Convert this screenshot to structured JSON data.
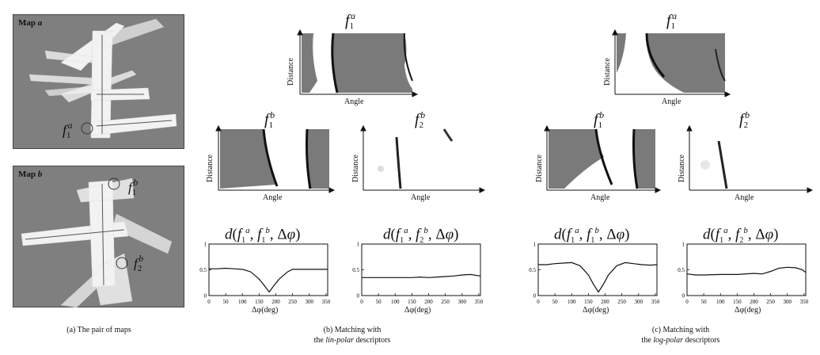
{
  "panel_a": {
    "map_a_label_prefix": "Map ",
    "map_a_label_letter": "a",
    "map_b_label_prefix": "Map ",
    "map_b_label_letter": "b",
    "caption": "(a) The pair of maps",
    "marker_a1": "f1a",
    "marker_b1": "f1b",
    "marker_b2": "f2b"
  },
  "panel_b": {
    "caption_line1": "(b) Matching with",
    "caption_line2_pre": "the ",
    "caption_line2_em": "lin-polar",
    "caption_line2_post": " descriptors",
    "desc_top": {
      "f": "f",
      "sub": "1",
      "sup": "a"
    },
    "desc_left": {
      "f": "f",
      "sub": "1",
      "sup": "b"
    },
    "desc_right": {
      "f": "f",
      "sub": "2",
      "sup": "b"
    }
  },
  "panel_c": {
    "caption_line1": "(c) Matching with",
    "caption_line2_pre": "the ",
    "caption_line2_em": "log-polar",
    "caption_line2_post": " descriptors",
    "desc_top": {
      "f": "f",
      "sub": "1",
      "sup": "a"
    },
    "desc_left": {
      "f": "f",
      "sub": "1",
      "sup": "b"
    },
    "desc_right": {
      "f": "f",
      "sub": "2",
      "sup": "b"
    }
  },
  "axes": {
    "x_label": "Angle",
    "y_label": "Distance",
    "plot_xlabel": "Δφ(deg)"
  },
  "plot_titles": {
    "b1": "d(f1a, f1b, Δφ)",
    "b2": "d(f1a, f2b, Δφ)",
    "c1": "d(f1a, f1b, Δφ)",
    "c2": "d(f1a, f2b, Δφ)"
  },
  "chart_data": [
    {
      "type": "line",
      "id": "b1",
      "x": [
        0,
        25,
        50,
        75,
        100,
        125,
        150,
        165,
        180,
        195,
        210,
        235,
        250,
        275,
        300,
        325,
        355
      ],
      "y": [
        0.52,
        0.52,
        0.53,
        0.52,
        0.51,
        0.46,
        0.32,
        0.2,
        0.07,
        0.2,
        0.32,
        0.46,
        0.51,
        0.51,
        0.51,
        0.51,
        0.51
      ],
      "xlim": [
        0,
        355
      ],
      "ylim": [
        0,
        1
      ],
      "xticks": [
        "0",
        "50",
        "100",
        "150",
        "200",
        "250",
        "300",
        "350"
      ],
      "yticks": [
        "0",
        "0.5",
        "1"
      ],
      "xlabel": "Δφ(deg)"
    },
    {
      "type": "line",
      "id": "b2",
      "x": [
        0,
        50,
        100,
        150,
        175,
        200,
        225,
        250,
        275,
        300,
        325,
        355
      ],
      "y": [
        0.35,
        0.35,
        0.35,
        0.35,
        0.36,
        0.35,
        0.36,
        0.37,
        0.38,
        0.4,
        0.41,
        0.38
      ],
      "xlim": [
        0,
        355
      ],
      "ylim": [
        0,
        1
      ],
      "xticks": [
        "0",
        "50",
        "100",
        "150",
        "200",
        "250",
        "300",
        "350"
      ],
      "yticks": [
        "0",
        "0.5",
        "1"
      ],
      "xlabel": "Δφ(deg)"
    },
    {
      "type": "line",
      "id": "c1",
      "x": [
        0,
        25,
        50,
        75,
        100,
        125,
        150,
        165,
        180,
        195,
        210,
        235,
        260,
        285,
        310,
        335,
        355
      ],
      "y": [
        0.6,
        0.6,
        0.62,
        0.63,
        0.64,
        0.58,
        0.4,
        0.22,
        0.07,
        0.22,
        0.4,
        0.58,
        0.64,
        0.62,
        0.6,
        0.59,
        0.6
      ],
      "xlim": [
        0,
        355
      ],
      "ylim": [
        0,
        1
      ],
      "xticks": [
        "0",
        "50",
        "100",
        "150",
        "200",
        "250",
        "300",
        "350"
      ],
      "yticks": [
        "0",
        "0.5",
        "1"
      ],
      "xlabel": "Δφ(deg)"
    },
    {
      "type": "line",
      "id": "c2",
      "x": [
        0,
        25,
        50,
        100,
        150,
        200,
        225,
        250,
        275,
        300,
        325,
        345,
        355
      ],
      "y": [
        0.42,
        0.4,
        0.4,
        0.41,
        0.41,
        0.43,
        0.42,
        0.47,
        0.53,
        0.55,
        0.54,
        0.5,
        0.45
      ],
      "xlim": [
        0,
        355
      ],
      "ylim": [
        0,
        1
      ],
      "xticks": [
        "0",
        "50",
        "100",
        "150",
        "200",
        "250",
        "300",
        "350"
      ],
      "yticks": [
        "0",
        "0.5",
        "1"
      ],
      "xlabel": "Δφ(deg)"
    }
  ]
}
